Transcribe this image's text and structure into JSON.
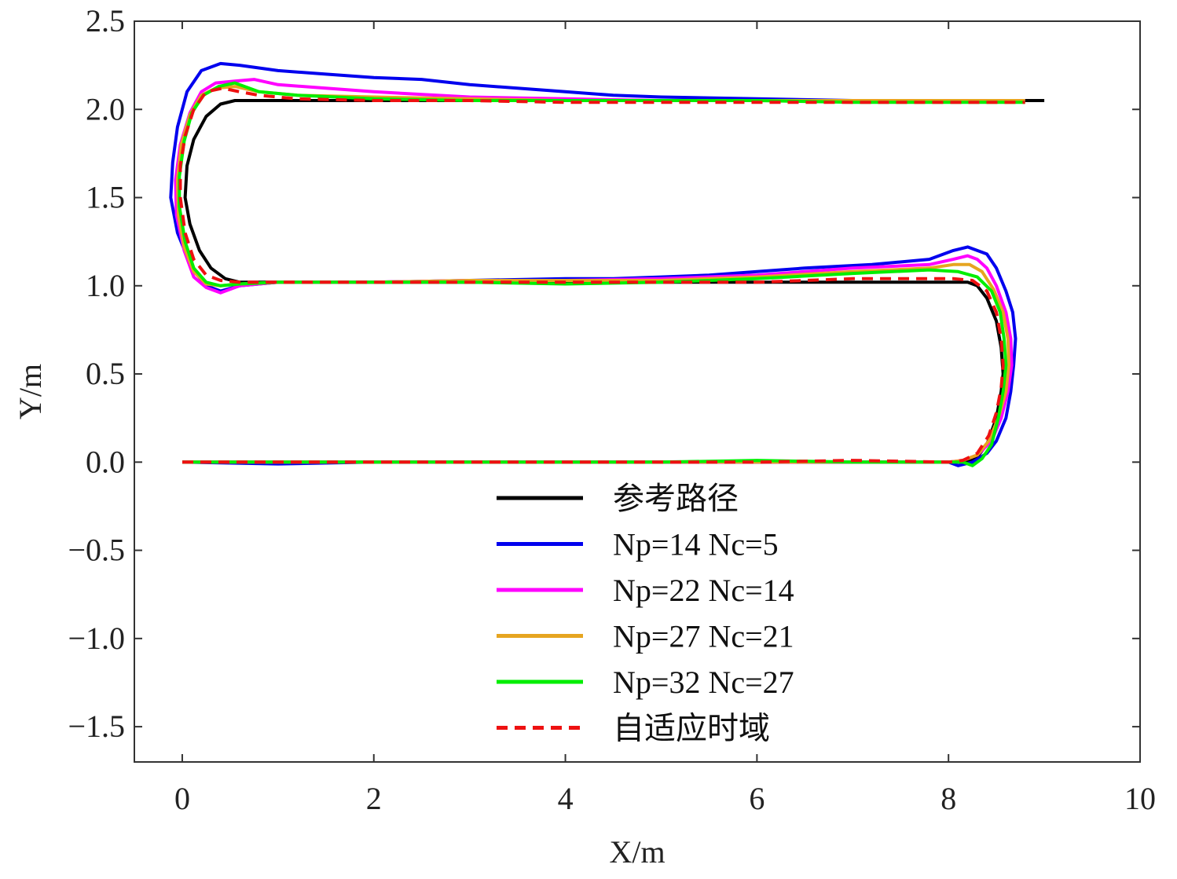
{
  "chart_data": {
    "type": "line",
    "xlabel": "X/m",
    "ylabel": "Y/m",
    "xlim": [
      -0.5,
      10
    ],
    "ylim": [
      -1.7,
      2.5
    ],
    "xticks": [
      0,
      2,
      4,
      6,
      8,
      10
    ],
    "yticks": [
      -1.5,
      -1.0,
      -0.5,
      0.0,
      0.5,
      1.0,
      1.5,
      2.0,
      2.5
    ],
    "xtick_labels": [
      "0",
      "2",
      "4",
      "6",
      "8",
      "10"
    ],
    "ytick_labels": [
      "−1.5",
      "−1.0",
      "−0.5",
      "0.0",
      "0.5",
      "1.0",
      "1.5",
      "2.0",
      "2.5"
    ],
    "grid": false,
    "legend_position": "lower-center",
    "series": [
      {
        "name": "参考路径",
        "color": "#000000",
        "dash": "solid",
        "points": [
          [
            0,
            0
          ],
          [
            8.2,
            0
          ],
          [
            8.3,
            0.03
          ],
          [
            8.4,
            0.1
          ],
          [
            8.5,
            0.25
          ],
          [
            8.55,
            0.4
          ],
          [
            8.57,
            0.5
          ],
          [
            8.55,
            0.65
          ],
          [
            8.5,
            0.8
          ],
          [
            8.4,
            0.93
          ],
          [
            8.3,
            1.0
          ],
          [
            8.2,
            1.02
          ],
          [
            0.6,
            1.02
          ],
          [
            0.45,
            1.04
          ],
          [
            0.3,
            1.1
          ],
          [
            0.18,
            1.2
          ],
          [
            0.08,
            1.35
          ],
          [
            0.03,
            1.5
          ],
          [
            0.05,
            1.68
          ],
          [
            0.12,
            1.83
          ],
          [
            0.25,
            1.96
          ],
          [
            0.4,
            2.03
          ],
          [
            0.55,
            2.05
          ],
          [
            9,
            2.05
          ]
        ]
      },
      {
        "name": "Np=14 Nc=5",
        "color": "#0000ee",
        "dash": "solid",
        "points": [
          [
            0,
            0
          ],
          [
            1,
            -0.01
          ],
          [
            2,
            0
          ],
          [
            3,
            0
          ],
          [
            4,
            0
          ],
          [
            5,
            0
          ],
          [
            6,
            0
          ],
          [
            7,
            0
          ],
          [
            8,
            0
          ],
          [
            8.1,
            -0.02
          ],
          [
            8.25,
            0
          ],
          [
            8.4,
            0.05
          ],
          [
            8.5,
            0.12
          ],
          [
            8.6,
            0.25
          ],
          [
            8.65,
            0.4
          ],
          [
            8.68,
            0.55
          ],
          [
            8.7,
            0.7
          ],
          [
            8.67,
            0.85
          ],
          [
            8.6,
            0.97
          ],
          [
            8.5,
            1.1
          ],
          [
            8.4,
            1.18
          ],
          [
            8.3,
            1.2
          ],
          [
            8.2,
            1.22
          ],
          [
            8.05,
            1.2
          ],
          [
            7.8,
            1.15
          ],
          [
            7.2,
            1.12
          ],
          [
            6.5,
            1.1
          ],
          [
            6,
            1.08
          ],
          [
            5.5,
            1.06
          ],
          [
            5,
            1.05
          ],
          [
            4.5,
            1.04
          ],
          [
            4,
            1.04
          ],
          [
            3,
            1.03
          ],
          [
            2,
            1.02
          ],
          [
            1,
            1.02
          ],
          [
            0.6,
            1.0
          ],
          [
            0.4,
            0.97
          ],
          [
            0.25,
            1.0
          ],
          [
            0.1,
            1.1
          ],
          [
            -0.05,
            1.3
          ],
          [
            -0.12,
            1.5
          ],
          [
            -0.1,
            1.7
          ],
          [
            -0.05,
            1.9
          ],
          [
            0.05,
            2.1
          ],
          [
            0.2,
            2.22
          ],
          [
            0.4,
            2.26
          ],
          [
            0.6,
            2.25
          ],
          [
            1.0,
            2.22
          ],
          [
            1.5,
            2.2
          ],
          [
            2,
            2.18
          ],
          [
            2.5,
            2.17
          ],
          [
            3,
            2.14
          ],
          [
            3.5,
            2.12
          ],
          [
            4,
            2.1
          ],
          [
            4.5,
            2.08
          ],
          [
            5,
            2.07
          ],
          [
            6,
            2.06
          ],
          [
            7,
            2.05
          ],
          [
            8,
            2.05
          ],
          [
            8.8,
            2.05
          ]
        ]
      },
      {
        "name": "Np=22 Nc=14",
        "color": "#ff00ff",
        "dash": "solid",
        "points": [
          [
            0,
            0
          ],
          [
            1,
            0
          ],
          [
            2,
            0
          ],
          [
            3,
            0
          ],
          [
            4,
            0
          ],
          [
            5,
            0
          ],
          [
            6,
            0
          ],
          [
            7,
            0
          ],
          [
            8,
            0
          ],
          [
            8.15,
            0.01
          ],
          [
            8.3,
            0.04
          ],
          [
            8.45,
            0.12
          ],
          [
            8.55,
            0.25
          ],
          [
            8.62,
            0.4
          ],
          [
            8.66,
            0.55
          ],
          [
            8.65,
            0.7
          ],
          [
            8.6,
            0.85
          ],
          [
            8.5,
            1.0
          ],
          [
            8.4,
            1.1
          ],
          [
            8.3,
            1.15
          ],
          [
            8.2,
            1.17
          ],
          [
            8.05,
            1.15
          ],
          [
            7.8,
            1.12
          ],
          [
            7,
            1.1
          ],
          [
            6,
            1.06
          ],
          [
            5,
            1.04
          ],
          [
            4,
            1.03
          ],
          [
            3,
            1.03
          ],
          [
            2,
            1.02
          ],
          [
            1,
            1.02
          ],
          [
            0.6,
            1.0
          ],
          [
            0.4,
            0.96
          ],
          [
            0.25,
            0.99
          ],
          [
            0.12,
            1.05
          ],
          [
            0.02,
            1.2
          ],
          [
            -0.06,
            1.4
          ],
          [
            -0.07,
            1.6
          ],
          [
            -0.02,
            1.8
          ],
          [
            0.08,
            1.98
          ],
          [
            0.2,
            2.1
          ],
          [
            0.35,
            2.15
          ],
          [
            0.55,
            2.16
          ],
          [
            0.75,
            2.17
          ],
          [
            1,
            2.14
          ],
          [
            1.5,
            2.12
          ],
          [
            2,
            2.1
          ],
          [
            3,
            2.07
          ],
          [
            4,
            2.06
          ],
          [
            5,
            2.05
          ],
          [
            6,
            2.05
          ],
          [
            7,
            2.05
          ],
          [
            8,
            2.05
          ],
          [
            8.8,
            2.05
          ]
        ]
      },
      {
        "name": "Np=27 Nc=21",
        "color": "#e6a520",
        "dash": "solid",
        "points": [
          [
            0,
            0
          ],
          [
            1,
            0
          ],
          [
            2,
            0
          ],
          [
            3,
            0
          ],
          [
            4,
            0
          ],
          [
            5,
            0
          ],
          [
            6,
            0
          ],
          [
            7,
            0
          ],
          [
            8,
            0
          ],
          [
            8.15,
            0.01
          ],
          [
            8.3,
            0.04
          ],
          [
            8.42,
            0.12
          ],
          [
            8.52,
            0.25
          ],
          [
            8.6,
            0.4
          ],
          [
            8.63,
            0.55
          ],
          [
            8.62,
            0.7
          ],
          [
            8.57,
            0.85
          ],
          [
            8.47,
            0.98
          ],
          [
            8.35,
            1.08
          ],
          [
            8.22,
            1.12
          ],
          [
            8.05,
            1.12
          ],
          [
            7.8,
            1.1
          ],
          [
            7,
            1.08
          ],
          [
            6,
            1.05
          ],
          [
            5,
            1.03
          ],
          [
            4,
            1.03
          ],
          [
            3,
            1.03
          ],
          [
            2,
            1.02
          ],
          [
            1,
            1.02
          ],
          [
            0.6,
            1.01
          ],
          [
            0.4,
            1.0
          ],
          [
            0.25,
            1.01
          ],
          [
            0.12,
            1.08
          ],
          [
            0.02,
            1.22
          ],
          [
            -0.04,
            1.4
          ],
          [
            -0.05,
            1.6
          ],
          [
            -0.01,
            1.8
          ],
          [
            0.08,
            1.97
          ],
          [
            0.2,
            2.08
          ],
          [
            0.35,
            2.12
          ],
          [
            0.55,
            2.13
          ],
          [
            0.8,
            2.1
          ],
          [
            1.2,
            2.08
          ],
          [
            2,
            2.07
          ],
          [
            3,
            2.06
          ],
          [
            4,
            2.05
          ],
          [
            5,
            2.05
          ],
          [
            6,
            2.05
          ],
          [
            7,
            2.05
          ],
          [
            8,
            2.05
          ],
          [
            8.8,
            2.05
          ]
        ]
      },
      {
        "name": "Np=32 Nc=27",
        "color": "#00ee00",
        "dash": "solid",
        "points": [
          [
            0,
            0
          ],
          [
            1,
            0
          ],
          [
            2,
            0
          ],
          [
            3,
            0
          ],
          [
            4,
            0
          ],
          [
            5,
            0
          ],
          [
            6,
            0.01
          ],
          [
            7,
            0
          ],
          [
            8,
            0
          ],
          [
            8.15,
            0.0
          ],
          [
            8.25,
            -0.02
          ],
          [
            8.35,
            0.02
          ],
          [
            8.45,
            0.1
          ],
          [
            8.52,
            0.25
          ],
          [
            8.57,
            0.4
          ],
          [
            8.6,
            0.55
          ],
          [
            8.58,
            0.7
          ],
          [
            8.54,
            0.85
          ],
          [
            8.45,
            0.97
          ],
          [
            8.3,
            1.05
          ],
          [
            8.1,
            1.08
          ],
          [
            7.8,
            1.09
          ],
          [
            7,
            1.07
          ],
          [
            6,
            1.04
          ],
          [
            5,
            1.02
          ],
          [
            4,
            1.01
          ],
          [
            3,
            1.02
          ],
          [
            2,
            1.02
          ],
          [
            1,
            1.02
          ],
          [
            0.6,
            1.01
          ],
          [
            0.4,
            1.0
          ],
          [
            0.25,
            1.02
          ],
          [
            0.12,
            1.1
          ],
          [
            0.03,
            1.25
          ],
          [
            -0.03,
            1.45
          ],
          [
            -0.03,
            1.62
          ],
          [
            0.02,
            1.82
          ],
          [
            0.1,
            1.98
          ],
          [
            0.22,
            2.08
          ],
          [
            0.38,
            2.13
          ],
          [
            0.55,
            2.15
          ],
          [
            0.8,
            2.1
          ],
          [
            1.2,
            2.08
          ],
          [
            2,
            2.06
          ],
          [
            3,
            2.05
          ],
          [
            4,
            2.05
          ],
          [
            5,
            2.05
          ],
          [
            6,
            2.05
          ],
          [
            7,
            2.04
          ],
          [
            8,
            2.04
          ],
          [
            8.8,
            2.04
          ]
        ]
      },
      {
        "name": "自适应时域",
        "color": "#ee1111",
        "dash": "dashed",
        "points": [
          [
            0,
            0
          ],
          [
            1,
            0
          ],
          [
            2,
            0
          ],
          [
            3,
            0
          ],
          [
            4,
            0
          ],
          [
            5,
            0
          ],
          [
            6,
            0
          ],
          [
            7,
            0.01
          ],
          [
            8,
            0
          ],
          [
            8.15,
            0.01
          ],
          [
            8.3,
            0.05
          ],
          [
            8.42,
            0.15
          ],
          [
            8.5,
            0.28
          ],
          [
            8.55,
            0.42
          ],
          [
            8.57,
            0.55
          ],
          [
            8.55,
            0.7
          ],
          [
            8.5,
            0.85
          ],
          [
            8.4,
            0.97
          ],
          [
            8.25,
            1.03
          ],
          [
            8.05,
            1.04
          ],
          [
            7.8,
            1.04
          ],
          [
            7,
            1.04
          ],
          [
            6,
            1.02
          ],
          [
            5,
            1.02
          ],
          [
            4,
            1.02
          ],
          [
            3,
            1.02
          ],
          [
            2,
            1.02
          ],
          [
            1,
            1.02
          ],
          [
            0.6,
            1.02
          ],
          [
            0.4,
            1.03
          ],
          [
            0.25,
            1.06
          ],
          [
            0.12,
            1.15
          ],
          [
            0.03,
            1.3
          ],
          [
            -0.02,
            1.5
          ],
          [
            -0.02,
            1.68
          ],
          [
            0.03,
            1.85
          ],
          [
            0.12,
            2.0
          ],
          [
            0.25,
            2.1
          ],
          [
            0.42,
            2.12
          ],
          [
            0.6,
            2.1
          ],
          [
            0.8,
            2.08
          ],
          [
            1.2,
            2.06
          ],
          [
            2,
            2.05
          ],
          [
            3,
            2.05
          ],
          [
            4,
            2.04
          ],
          [
            5,
            2.04
          ],
          [
            6,
            2.04
          ],
          [
            7,
            2.04
          ],
          [
            8,
            2.04
          ],
          [
            8.8,
            2.04
          ]
        ]
      }
    ]
  }
}
